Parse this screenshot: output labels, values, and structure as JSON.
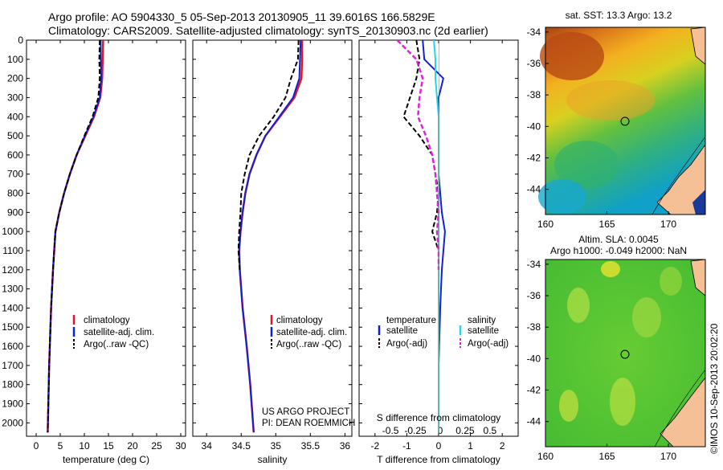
{
  "header": {
    "line1": "Argo profile: AO 5904330_5 05-Sep-2013 20130905_11 39.6016S 166.5829E",
    "line2": "Climatology: CARS2009. Satellite-adjusted climatology: synTS_20130903.nc (2d earlier)"
  },
  "colors": {
    "climatology": "#e0181c",
    "satellite": "#1020d8",
    "argo": "#000000",
    "sal_satellite": "#20d8e8",
    "sal_argo": "#e020e0",
    "land": "#f5c096"
  },
  "depth_axis": {
    "ticks": [
      "0",
      "100",
      "200",
      "300",
      "400",
      "500",
      "600",
      "700",
      "800",
      "900",
      "1000",
      "1100",
      "1200",
      "1300",
      "1400",
      "1500",
      "1600",
      "1700",
      "1800",
      "1900",
      "2000"
    ]
  },
  "panel_temperature": {
    "xlabel": "temperature (deg C)",
    "xticks": [
      "0",
      "5",
      "10",
      "15",
      "20",
      "25",
      "30"
    ],
    "legend": [
      "climatology",
      "satellite-adj. clim.",
      "Argo(..raw -QC)"
    ]
  },
  "panel_salinity": {
    "xlabel": "salinity",
    "xticks": [
      "34",
      "34.5",
      "35",
      "35.5",
      "36"
    ],
    "legend": [
      "climatology",
      "satellite-adj. clim.",
      "Argo(..raw -QC)"
    ],
    "note1": "US ARGO PROJECT",
    "note2": "PI: DEAN ROEMMICH"
  },
  "panel_difference": {
    "xlabel": "T difference from climatology",
    "top_label": "S difference from climatology",
    "xticks": [
      "-2",
      "-1",
      "0",
      "1",
      "2"
    ],
    "top_ticks": [
      "-0.5",
      "-0.25",
      "0",
      "0.25",
      "0.5"
    ],
    "legend_t_title": "temperature",
    "legend_s_title": "salinity",
    "legend_t": [
      "satellite",
      "Argo(-adj)"
    ],
    "legend_s": [
      "satellite",
      "Argo(-adj)"
    ]
  },
  "map_sst": {
    "title": "sat. SST: 13.3 Argo: 13.2",
    "xticks": [
      "160",
      "165",
      "170"
    ],
    "yticks": [
      "-34",
      "-36",
      "-38",
      "-40",
      "-42",
      "-44"
    ]
  },
  "map_sla": {
    "title1": "Altim. SLA: 0.0045",
    "title2": "Argo h1000: -0.049 h2000: NaN",
    "xticks": [
      "160",
      "165",
      "170"
    ],
    "yticks": [
      "-34",
      "-36",
      "-38",
      "-40",
      "-42",
      "-44"
    ]
  },
  "watermark": "©IMOS 10-Sep-2013 20:02:20",
  "chart_data": [
    {
      "type": "line",
      "xlabel": "temperature (deg C)",
      "ylabel": "",
      "xlim": [
        -2,
        31
      ],
      "ylim": [
        2070,
        0
      ],
      "series": [
        {
          "name": "climatology",
          "x": [
            13.9,
            13.8,
            13.7,
            13.3,
            12.0,
            10.2,
            8.4,
            7.0,
            5.8,
            4.8,
            4.0,
            3.5,
            3.1,
            2.7,
            2.4
          ],
          "y": [
            0,
            100,
            200,
            300,
            400,
            500,
            600,
            700,
            800,
            900,
            1000,
            1200,
            1400,
            1700,
            2050
          ]
        },
        {
          "name": "satellite-adj. clim.",
          "x": [
            13.4,
            13.4,
            13.5,
            13.2,
            11.9,
            10.1,
            8.4,
            7.0,
            5.8,
            4.8,
            4.0,
            3.5,
            3.1,
            2.7,
            2.4
          ],
          "y": [
            0,
            100,
            200,
            300,
            400,
            500,
            600,
            700,
            800,
            900,
            1000,
            1200,
            1400,
            1700,
            2050
          ]
        },
        {
          "name": "Argo(..raw -QC)",
          "x": [
            13.2,
            13.1,
            13.2,
            12.9,
            11.7,
            10.0,
            8.4,
            7.0,
            5.8,
            4.8,
            4.0,
            3.5,
            3.1,
            2.7,
            2.4
          ],
          "y": [
            0,
            100,
            200,
            300,
            400,
            500,
            600,
            700,
            800,
            900,
            1000,
            1200,
            1400,
            1700,
            2050
          ]
        }
      ]
    },
    {
      "type": "line",
      "xlabel": "salinity",
      "ylabel": "",
      "xlim": [
        33.8,
        36.1
      ],
      "ylim": [
        2070,
        0
      ],
      "series": [
        {
          "name": "climatology",
          "x": [
            35.38,
            35.38,
            35.37,
            35.27,
            35.06,
            34.85,
            34.72,
            34.62,
            34.56,
            34.52,
            34.49,
            34.47,
            34.48,
            34.52,
            34.58,
            34.63,
            34.68
          ],
          "y": [
            0,
            100,
            200,
            300,
            400,
            500,
            600,
            700,
            800,
            900,
            1000,
            1100,
            1200,
            1400,
            1600,
            1800,
            2050
          ]
        },
        {
          "name": "satellite-adj. clim.",
          "x": [
            35.36,
            35.35,
            35.34,
            35.25,
            35.05,
            34.85,
            34.72,
            34.62,
            34.56,
            34.52,
            34.49,
            34.47,
            34.48,
            34.52,
            34.58,
            34.63,
            34.68
          ],
          "y": [
            0,
            100,
            200,
            300,
            400,
            500,
            600,
            700,
            800,
            900,
            1000,
            1100,
            1200,
            1400,
            1600,
            1800,
            2050
          ]
        },
        {
          "name": "Argo(..raw -QC)",
          "x": [
            35.33,
            35.32,
            35.22,
            35.14,
            34.97,
            34.76,
            34.62,
            34.55,
            34.5,
            34.49,
            34.47,
            34.46,
            34.48
          ],
          "y": [
            0,
            100,
            200,
            300,
            400,
            500,
            600,
            700,
            800,
            900,
            1000,
            1100,
            1200
          ]
        }
      ]
    },
    {
      "type": "line",
      "xlabel": "T difference from climatology",
      "ylabel": "",
      "xlim": [
        -2.5,
        2.5
      ],
      "ylim": [
        2070,
        0
      ],
      "series": [
        {
          "name": "temperature satellite",
          "x": [
            -0.5,
            -0.45,
            0.15,
            0.0,
            0.0,
            0.0,
            0.0,
            0.0,
            0.05,
            0.1,
            0.2,
            0.1,
            0.05,
            0.0,
            0.0
          ],
          "y": [
            0,
            100,
            200,
            300,
            400,
            500,
            600,
            700,
            800,
            900,
            1000,
            1200,
            1400,
            1700,
            2050
          ]
        },
        {
          "name": "temperature Argo(-adj)",
          "x": [
            -0.7,
            -0.6,
            -0.7,
            -0.9,
            -1.1,
            -0.6,
            -0.2,
            -0.1,
            0.0,
            -0.05,
            -0.2,
            0.0,
            0.0
          ],
          "y": [
            0,
            100,
            200,
            300,
            400,
            500,
            600,
            700,
            800,
            900,
            1000,
            1100,
            1200
          ]
        },
        {
          "name": "salinity satellite",
          "x": [
            -0.15,
            -0.1,
            -0.1,
            -0.05,
            0.0,
            0.0,
            0.0,
            0.0,
            0.0,
            0.0,
            0.0,
            0.0,
            0.0
          ],
          "y": [
            0,
            100,
            200,
            300,
            400,
            500,
            600,
            700,
            800,
            900,
            1000,
            1500,
            2050
          ]
        },
        {
          "name": "salinity Argo(-adj)",
          "x": [
            -1.3,
            -0.7,
            -0.5,
            -0.6,
            -0.65,
            -0.4,
            -0.2,
            -0.1,
            -0.05,
            0.0,
            -0.05,
            0.0,
            0.0
          ],
          "y": [
            0,
            100,
            200,
            300,
            400,
            500,
            600,
            700,
            800,
            900,
            1000,
            1100,
            1200
          ]
        }
      ]
    }
  ]
}
